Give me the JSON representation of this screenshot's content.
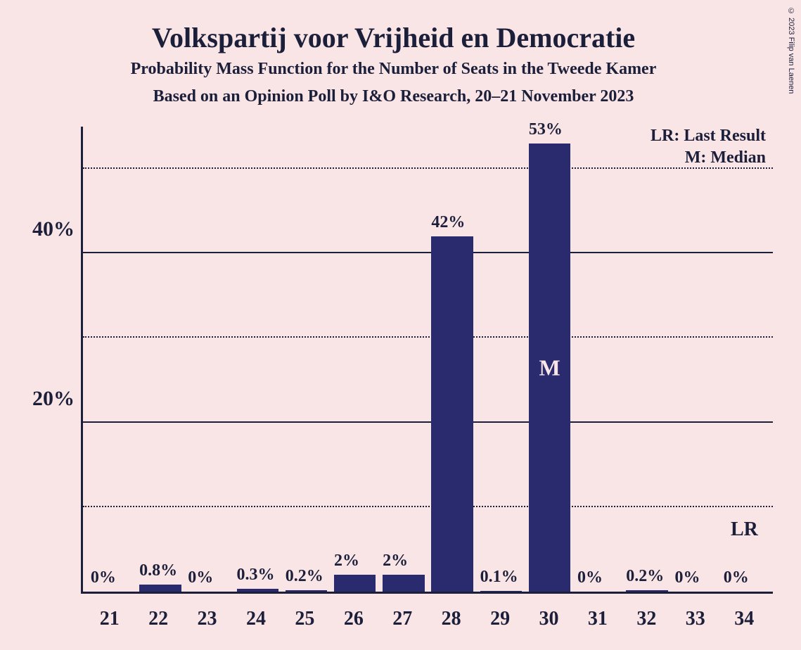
{
  "title": "Volkspartij voor Vrijheid en Democratie",
  "subtitle": "Probability Mass Function for the Number of Seats in the Tweede Kamer",
  "subtitle2": "Based on an Opinion Poll by I&O Research, 20–21 November 2023",
  "copyright": "© 2023 Filip van Laenen",
  "legend": {
    "lr": "LR: Last Result",
    "m": "M: Median"
  },
  "chart": {
    "type": "bar",
    "background_color": "#f9e5e5",
    "axis_color": "#1c1f3a",
    "grid_color_solid": "#1c1f3a",
    "grid_color_dotted": "#1c1f3a",
    "bar_color": "#2a2a6e",
    "text_color": "#1c1f3a",
    "marker_text_color": "#f9e5e5",
    "title_fontsize": 40,
    "subtitle_fontsize": 24,
    "subtitle2_fontsize": 24,
    "ytick_fontsize": 30,
    "xtick_fontsize": 28,
    "barlabel_fontsize": 24,
    "legend_fontsize": 24,
    "marker_fontsize": 32,
    "lr_fontsize": 28,
    "ylim_max": 55,
    "y_ticks_solid": [
      20,
      40
    ],
    "y_ticks_dotted": [
      10,
      30,
      50
    ],
    "y_tick_labels": [
      {
        "value": 20,
        "label": "20%"
      },
      {
        "value": 40,
        "label": "40%"
      }
    ],
    "categories": [
      "21",
      "22",
      "23",
      "24",
      "25",
      "26",
      "27",
      "28",
      "29",
      "30",
      "31",
      "32",
      "33",
      "34"
    ],
    "values": [
      0,
      0.8,
      0,
      0.3,
      0.2,
      2,
      2,
      42,
      0.1,
      53,
      0,
      0.2,
      0,
      0
    ],
    "value_labels": [
      "0%",
      "0.8%",
      "0%",
      "0.3%",
      "0.2%",
      "2%",
      "2%",
      "42%",
      "0.1%",
      "53%",
      "0%",
      "0.2%",
      "0%",
      "0%"
    ],
    "median_index": 9,
    "median_marker": "M",
    "lr_index": 13,
    "lr_marker": "LR"
  }
}
